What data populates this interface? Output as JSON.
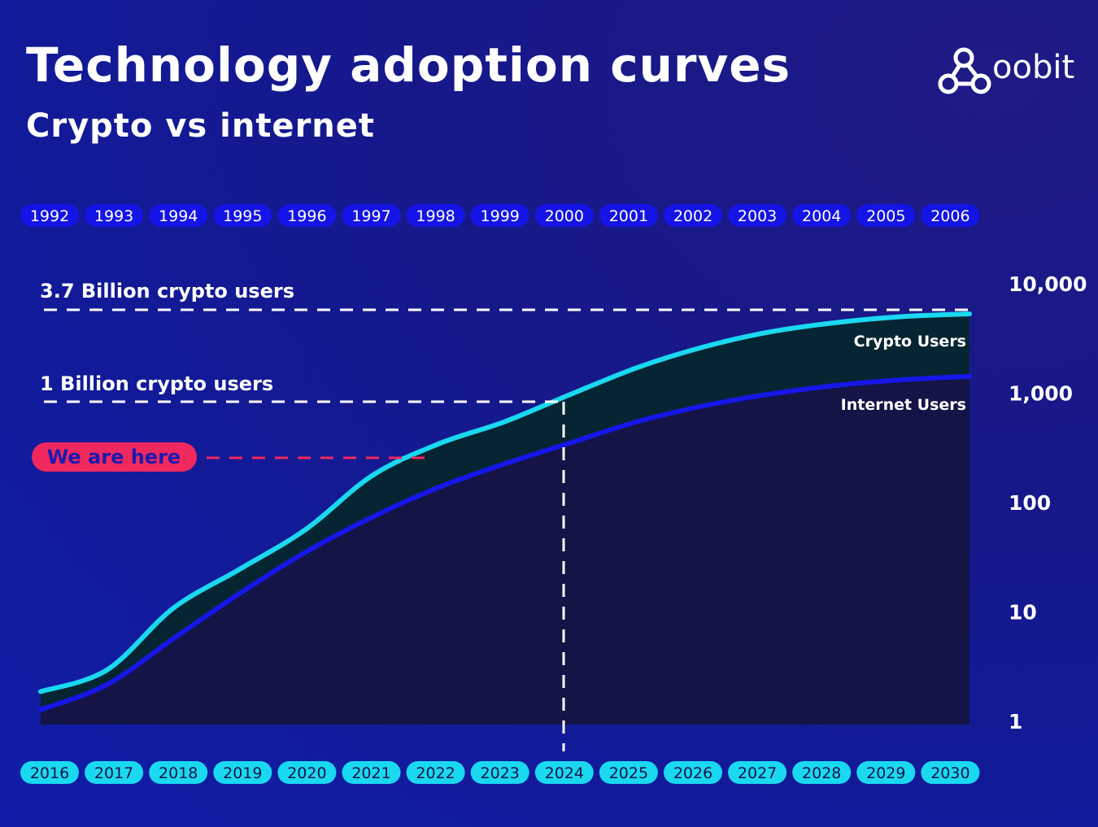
{
  "header": {
    "title": "Technology adoption curves",
    "subtitle": "Crypto vs internet",
    "logo_text": "oobit"
  },
  "colors": {
    "crypto_line": "#1ad8f0",
    "internet_line": "#1616e8",
    "gap_fill": "#062532",
    "under_fill": "#141446",
    "top_pill": "#1414e6",
    "bottom_pill": "#1ad8f0",
    "here_pill": "#f0285e"
  },
  "chart_data": {
    "type": "line",
    "y_scale": "log",
    "ylim": [
      1,
      10000
    ],
    "y_ticks": [
      "1",
      "10",
      "100",
      "1,000",
      "10,000"
    ],
    "x_top_labels": [
      "1992",
      "1993",
      "1994",
      "1995",
      "1996",
      "1997",
      "1998",
      "1999",
      "2000",
      "2001",
      "2002",
      "2003",
      "2004",
      "2005",
      "2006"
    ],
    "x": [
      "2016",
      "2017",
      "2018",
      "2019",
      "2020",
      "2021",
      "2022",
      "2023",
      "2024",
      "2025",
      "2026",
      "2027",
      "2028",
      "2029",
      "2030"
    ],
    "series": [
      {
        "name": "Crypto Users",
        "values": [
          1.9,
          3.0,
          11,
          25,
          58,
          180,
          350,
          560,
          1000,
          1750,
          2700,
          3700,
          4500,
          5100,
          5400
        ]
      },
      {
        "name": "Internet Users",
        "values": [
          1.3,
          2.2,
          5.8,
          15,
          36,
          75,
          140,
          230,
          360,
          560,
          780,
          1000,
          1200,
          1350,
          1450
        ]
      }
    ],
    "annotations": {
      "crypto_3_7b": "3.7 Billion crypto users",
      "crypto_1b": "1 Billion crypto users",
      "here": "We are here"
    }
  }
}
